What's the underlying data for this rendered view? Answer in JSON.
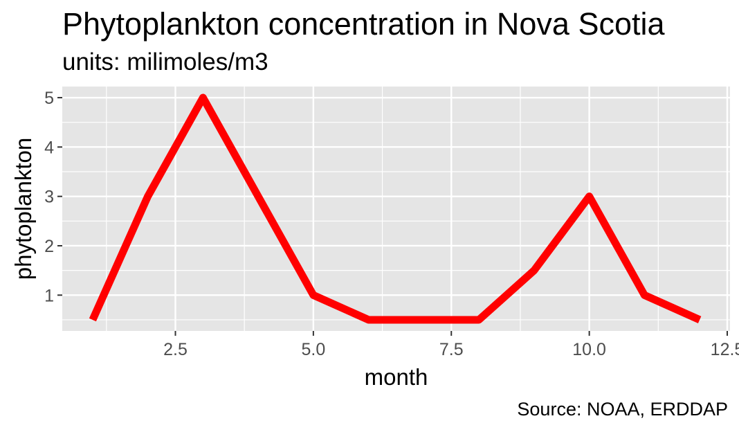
{
  "title": "Phytoplankton concentration in Nova Scotia",
  "subtitle": "units: milimoles/m3",
  "caption": "Source: NOAA, ERDDAP",
  "chart_data": {
    "type": "line",
    "title": "Phytoplankton concentration in Nova Scotia",
    "subtitle": "units: milimoles/m3",
    "xlabel": "month",
    "ylabel": "phytoplankton",
    "x": [
      1,
      2,
      3,
      4,
      5,
      6,
      7,
      8,
      9,
      10,
      11,
      12
    ],
    "series": [
      {
        "values": [
          0.5,
          3,
          5,
          3,
          1,
          0.5,
          0.5,
          0.5,
          1.5,
          3,
          1,
          0.5
        ],
        "color": "#ff0000"
      }
    ],
    "xlim": [
      0.45,
      12.55
    ],
    "ylim": [
      0.275,
      5.225
    ],
    "xticks": [
      2.5,
      5.0,
      7.5,
      10.0,
      12.5
    ],
    "xtick_labels": [
      "2.5",
      "5.0",
      "7.5",
      "10.0",
      "12.5"
    ],
    "yticks": [
      1,
      2,
      3,
      4,
      5
    ],
    "ytick_labels": [
      "1",
      "2",
      "3",
      "4",
      "5"
    ],
    "x_minor_ticks": [
      1.25,
      3.75,
      6.25,
      8.75,
      11.25
    ],
    "y_minor_ticks": [
      0.5,
      1.5,
      2.5,
      3.5,
      4.5
    ],
    "grid": true,
    "panel_background": "#e5e5e5",
    "grid_color": "#ffffff",
    "legend": "none"
  }
}
